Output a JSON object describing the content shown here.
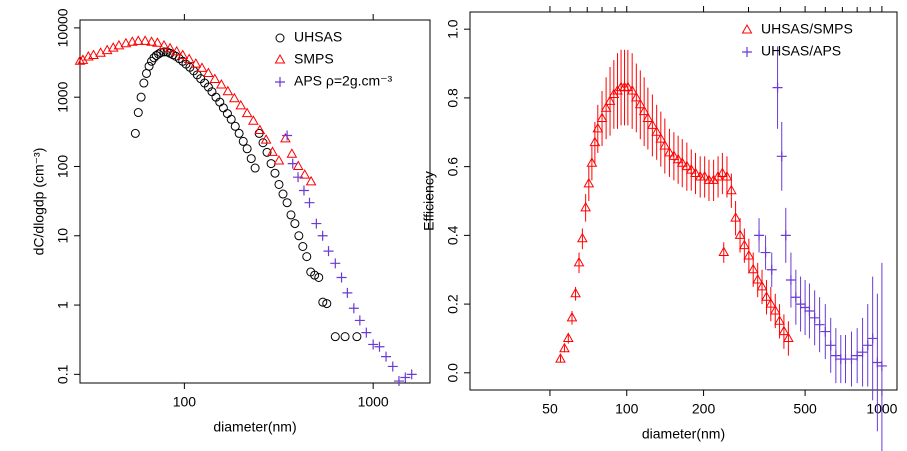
{
  "chart_data": [
    {
      "type": "scatter",
      "xlabel": "diameter(nm)",
      "ylabel": "dC/dlogdp (cm⁻³)",
      "xlog": true,
      "ylog": true,
      "xlim": [
        28,
        2000
      ],
      "ylim": [
        0.075,
        13000
      ],
      "xticks": [
        100,
        1000
      ],
      "yticks": [
        0.1,
        1,
        10,
        100,
        1000,
        10000
      ],
      "legend": "top-right",
      "series": [
        {
          "name": "UHSAS",
          "color": "#000000",
          "marker": "circle",
          "x": [
            55,
            57,
            59,
            61,
            63,
            65,
            67,
            69,
            71,
            73,
            75,
            78,
            81,
            84,
            87,
            90,
            94,
            98,
            102,
            107,
            112,
            117,
            122,
            128,
            134,
            140,
            147,
            154,
            161,
            169,
            177,
            186,
            195,
            205,
            215,
            226,
            237,
            249,
            261,
            274,
            288,
            302,
            317,
            333,
            350,
            367,
            385,
            404,
            424,
            445,
            467,
            490,
            515,
            541,
            568,
            630,
            710,
            820
          ],
          "values": [
            300,
            600,
            1000,
            1600,
            2200,
            2800,
            3300,
            3700,
            4000,
            4200,
            4400,
            4500,
            4500,
            4300,
            4100,
            3900,
            3600,
            3300,
            3000,
            2700,
            2400,
            2100,
            1850,
            1600,
            1400,
            1200,
            1000,
            850,
            700,
            580,
            480,
            380,
            300,
            230,
            180,
            130,
            95,
            300,
            220,
            160,
            110,
            80,
            55,
            40,
            30,
            20,
            15,
            10,
            7,
            5,
            3,
            2.7,
            2.5,
            1.1,
            1.05,
            0.35,
            0.35,
            0.35
          ]
        },
        {
          "name": "SMPS",
          "color": "#ff0000",
          "marker": "triangle",
          "x": [
            28,
            29,
            31,
            33,
            36,
            39,
            42,
            45,
            49,
            53,
            57,
            62,
            67,
            72,
            78,
            84,
            91,
            98,
            106,
            115,
            124,
            134,
            145,
            157,
            170,
            184,
            199,
            215,
            232,
            251,
            271,
            293,
            317,
            343,
            371,
            401,
            434,
            469
          ],
          "values": [
            3300,
            3400,
            3800,
            4000,
            4300,
            4700,
            5100,
            5500,
            5900,
            6200,
            6400,
            6400,
            6200,
            6000,
            5500,
            5000,
            4500,
            4000,
            3500,
            3000,
            2600,
            2200,
            1800,
            1500,
            1200,
            950,
            750,
            580,
            450,
            330,
            240,
            160,
            120,
            250,
            150,
            100,
            75,
            60
          ]
        },
        {
          "name": "APS ρ=2g.cm⁻³",
          "color": "#6a3ad6",
          "marker": "plus",
          "x": [
            350,
            375,
            400,
            430,
            460,
            500,
            540,
            580,
            630,
            680,
            730,
            790,
            850,
            920,
            1000,
            1080,
            1170,
            1270,
            1370,
            1480,
            1600
          ],
          "values": [
            280,
            110,
            70,
            45,
            30,
            15,
            10,
            6,
            4,
            2.5,
            1.5,
            0.9,
            0.6,
            0.4,
            0.27,
            0.25,
            0.18,
            0.13,
            0.08,
            0.09,
            0.1
          ]
        }
      ]
    },
    {
      "type": "scatter",
      "xlabel": "diameter(nm)",
      "ylabel": "Efficiency",
      "xlog": true,
      "ylog": false,
      "xlim": [
        24.3,
        1146
      ],
      "ylim": [
        -0.05,
        1.05
      ],
      "xticks": [
        50,
        100,
        200,
        500,
        1000
      ],
      "xminorticks": [
        60,
        70,
        80,
        90,
        300,
        400,
        600,
        700,
        800,
        900
      ],
      "yticks": [
        {
          "value": 0,
          "label": "0.0"
        },
        0.2,
        0.4,
        0.6,
        0.8,
        {
          "value": 1,
          "label": "1.0"
        }
      ],
      "legend": "top-right",
      "series": [
        {
          "name": "UHSAS/SMPS",
          "color": "#ff0000",
          "marker": "triangle",
          "x": [
            55,
            57,
            59,
            61,
            63,
            65,
            67,
            69,
            71,
            73,
            75,
            77,
            80,
            83,
            86,
            89,
            92,
            95,
            98,
            101,
            105,
            109,
            113,
            117,
            121,
            126,
            131,
            136,
            141,
            147,
            153,
            159,
            165,
            172,
            179,
            186,
            194,
            202,
            210,
            219,
            228,
            237,
            247,
            257,
            267,
            278,
            289,
            301,
            313,
            326,
            339,
            353,
            367,
            382,
            397,
            413,
            430,
            240
          ],
          "values": [
            0.04,
            0.07,
            0.1,
            0.16,
            0.23,
            0.32,
            0.39,
            0.48,
            0.55,
            0.61,
            0.67,
            0.71,
            0.74,
            0.77,
            0.79,
            0.81,
            0.82,
            0.83,
            0.83,
            0.83,
            0.82,
            0.8,
            0.78,
            0.76,
            0.74,
            0.72,
            0.7,
            0.68,
            0.66,
            0.64,
            0.63,
            0.62,
            0.61,
            0.6,
            0.59,
            0.58,
            0.57,
            0.57,
            0.56,
            0.56,
            0.57,
            0.58,
            0.57,
            0.53,
            0.45,
            0.4,
            0.37,
            0.34,
            0.3,
            0.27,
            0.25,
            0.22,
            0.2,
            0.18,
            0.15,
            0.12,
            0.1,
            0.35
          ],
          "errors": [
            0.01,
            0.01,
            0.015,
            0.02,
            0.02,
            0.03,
            0.03,
            0.04,
            0.05,
            0.05,
            0.06,
            0.07,
            0.08,
            0.09,
            0.1,
            0.1,
            0.11,
            0.11,
            0.11,
            0.11,
            0.11,
            0.1,
            0.1,
            0.1,
            0.09,
            0.09,
            0.08,
            0.08,
            0.08,
            0.07,
            0.07,
            0.07,
            0.07,
            0.07,
            0.06,
            0.06,
            0.06,
            0.06,
            0.06,
            0.06,
            0.06,
            0.06,
            0.06,
            0.05,
            0.05,
            0.05,
            0.05,
            0.05,
            0.05,
            0.05,
            0.05,
            0.05,
            0.05,
            0.05,
            0.05,
            0.05,
            0.05,
            0.03
          ]
        },
        {
          "name": "UHSAS/APS",
          "color": "#6a3ad6",
          "marker": "plus",
          "x": [
            330,
            350,
            370,
            390,
            405,
            420,
            440,
            460,
            480,
            500,
            520,
            545,
            570,
            600,
            630,
            660,
            690,
            720,
            760,
            800,
            840,
            880,
            920,
            960,
            1000
          ],
          "values": [
            0.4,
            0.35,
            0.3,
            0.83,
            0.63,
            0.4,
            0.27,
            0.22,
            0.2,
            0.19,
            0.18,
            0.16,
            0.14,
            0.12,
            0.08,
            0.05,
            0.04,
            0.04,
            0.04,
            0.05,
            0.06,
            0.08,
            0.1,
            0.03,
            0.02
          ],
          "errors": [
            0.05,
            0.05,
            0.05,
            0.12,
            0.1,
            0.08,
            0.08,
            0.08,
            0.08,
            0.08,
            0.08,
            0.08,
            0.08,
            0.08,
            0.08,
            0.08,
            0.07,
            0.07,
            0.08,
            0.08,
            0.1,
            0.12,
            0.18,
            0.2,
            0.3
          ]
        }
      ]
    }
  ]
}
